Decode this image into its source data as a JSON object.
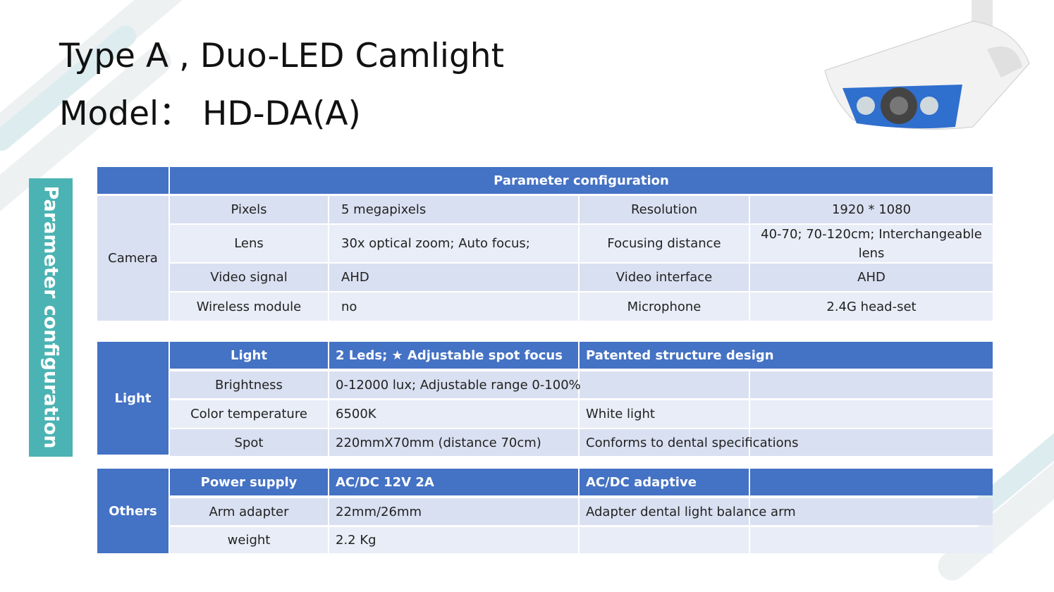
{
  "header": {
    "title": "Type A , Duo-LED Camlight",
    "model": "Model：  HD-DA(A)"
  },
  "side_label": "Parameter configuration",
  "tables": [
    {
      "header": "Parameter configuration",
      "group": "Camera",
      "rows": [
        [
          "Pixels",
          "5 megapixels",
          "Resolution",
          "1920 * 1080"
        ],
        [
          "Lens",
          "30x optical zoom; Auto focus;",
          "Focusing distance",
          "40-70; 70-120cm; Interchangeable lens"
        ],
        [
          "Video signal",
          "AHD",
          "Video interface",
          "AHD"
        ],
        [
          "Wireless module",
          "no",
          "Microphone",
          "2.4G head-set"
        ]
      ]
    },
    {
      "group": "Light",
      "header_row": [
        "Light",
        "2 Leds; ★ Adjustable spot focus",
        "Patented structure design"
      ],
      "rows": [
        [
          "Brightness",
          "0-12000 lux; Adjustable range 0-100%"
        ],
        [
          "Color temperature",
          "6500K",
          "White light"
        ],
        [
          "Spot",
          "220mmX70mm (distance 70cm)",
          "Conforms to dental specifications"
        ]
      ]
    },
    {
      "group": "Others",
      "header_row": [
        "Power supply",
        "AC/DC 12V 2A",
        "AC/DC adaptive"
      ],
      "rows": [
        [
          "Arm adapter",
          "22mm/26mm",
          "Adapter dental light balance arm"
        ],
        [
          "weight",
          "2.2 Kg"
        ]
      ]
    }
  ]
}
